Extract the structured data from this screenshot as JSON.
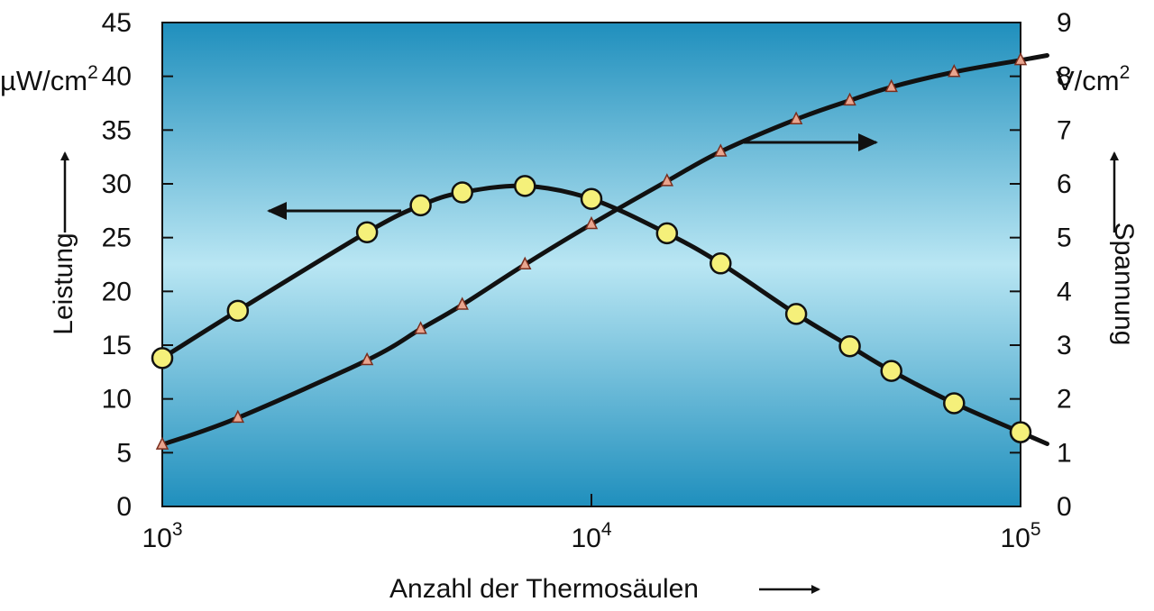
{
  "chart_data": {
    "type": "line",
    "xlabel": "Anzahl der Thermosäulen",
    "x_scale": "log",
    "xlim": [
      1000,
      100000
    ],
    "x_ticks": [
      {
        "base": "10",
        "exp": "3",
        "value": 1000
      },
      {
        "base": "10",
        "exp": "4",
        "value": 10000
      },
      {
        "base": "10",
        "exp": "5",
        "value": 100000
      }
    ],
    "y_left": {
      "label": "Leistung",
      "unit_main": "µW/cm",
      "unit_sup": "2",
      "range": [
        0,
        45
      ],
      "ticks": [
        "0",
        "5",
        "10",
        "15",
        "20",
        "25",
        "30",
        "35",
        "40",
        "45"
      ]
    },
    "y_right": {
      "label": "Spannung",
      "unit_main": "V/cm",
      "unit_sup": "2",
      "range": [
        0,
        9
      ],
      "ticks": [
        "0",
        "1",
        "2",
        "3",
        "4",
        "5",
        "6",
        "7",
        "8",
        "9"
      ]
    },
    "grid": false,
    "background": [
      "#1f8fbd",
      "#b9e6f3",
      "#1f8fbd"
    ],
    "series": [
      {
        "axis": "left",
        "marker": "circle",
        "marker_color": "#f5f07a",
        "values": [
          {
            "x": 1000,
            "y": 13.8
          },
          {
            "x": 1500,
            "y": 18.2
          },
          {
            "x": 3000,
            "y": 25.5
          },
          {
            "x": 4000,
            "y": 28.0
          },
          {
            "x": 5000,
            "y": 29.2
          },
          {
            "x": 7000,
            "y": 29.8
          },
          {
            "x": 10000,
            "y": 28.6
          },
          {
            "x": 15000,
            "y": 25.4
          },
          {
            "x": 20000,
            "y": 22.6
          },
          {
            "x": 30000,
            "y": 17.9
          },
          {
            "x": 40000,
            "y": 14.9
          },
          {
            "x": 50000,
            "y": 12.6
          },
          {
            "x": 70000,
            "y": 9.6
          },
          {
            "x": 100000,
            "y": 6.9
          }
        ]
      },
      {
        "axis": "right",
        "marker": "triangle",
        "marker_color": "#e9a58e",
        "values": [
          {
            "x": 1000,
            "y": 1.15
          },
          {
            "x": 1500,
            "y": 1.65
          },
          {
            "x": 3000,
            "y": 2.72
          },
          {
            "x": 4000,
            "y": 3.3
          },
          {
            "x": 5000,
            "y": 3.75
          },
          {
            "x": 7000,
            "y": 4.5
          },
          {
            "x": 10000,
            "y": 5.25
          },
          {
            "x": 15000,
            "y": 6.05
          },
          {
            "x": 20000,
            "y": 6.6
          },
          {
            "x": 30000,
            "y": 7.2
          },
          {
            "x": 40000,
            "y": 7.55
          },
          {
            "x": 50000,
            "y": 7.8
          },
          {
            "x": 70000,
            "y": 8.08
          },
          {
            "x": 100000,
            "y": 8.3
          }
        ]
      }
    ]
  }
}
